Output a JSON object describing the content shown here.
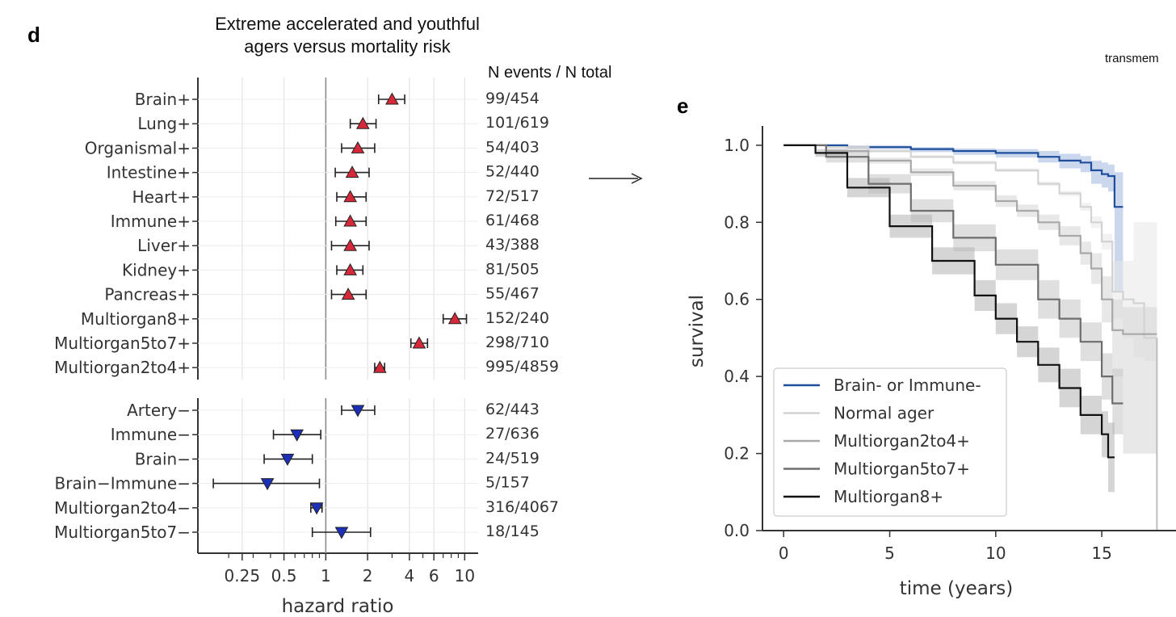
{
  "panel_d": {
    "letter": "d",
    "title_line1": "Extreme accelerated and youthful",
    "title_line2": "agers versus mortality risk",
    "counts_header": "N events / N total"
  },
  "panel_e": {
    "letter": "e",
    "clipped_label": "transmem"
  },
  "chart_data": [
    {
      "type": "scatter",
      "subtype": "forest-plot",
      "xlabel": "hazard ratio",
      "xscale": "log",
      "xlim": [
        0.12,
        12.5
      ],
      "xticks": [
        0.25,
        0.5,
        1,
        2,
        4,
        6,
        10
      ],
      "xtick_labels": [
        "0.25",
        "0.5",
        "1",
        "2",
        "4",
        "6",
        "10"
      ],
      "reference_line": 1,
      "grid": true,
      "groups": [
        {
          "marker": "triangle-up",
          "color": "#d62839",
          "rows": [
            {
              "label": "Brain+",
              "hr": 3.0,
              "lo": 2.4,
              "hi": 3.7,
              "count": "99/454"
            },
            {
              "label": "Lung+",
              "hr": 1.85,
              "lo": 1.5,
              "hi": 2.3,
              "count": "101/619"
            },
            {
              "label": "Organismal+",
              "hr": 1.7,
              "lo": 1.3,
              "hi": 2.25,
              "count": "54/403"
            },
            {
              "label": "Intestine+",
              "hr": 1.55,
              "lo": 1.17,
              "hi": 2.05,
              "count": "52/440"
            },
            {
              "label": "Heart+",
              "hr": 1.5,
              "lo": 1.2,
              "hi": 1.95,
              "count": "72/517"
            },
            {
              "label": "Immune+",
              "hr": 1.5,
              "lo": 1.18,
              "hi": 1.95,
              "count": "61/468"
            },
            {
              "label": "Liver+",
              "hr": 1.5,
              "lo": 1.1,
              "hi": 2.05,
              "count": "43/388"
            },
            {
              "label": "Kidney+",
              "hr": 1.5,
              "lo": 1.2,
              "hi": 1.85,
              "count": "81/505"
            },
            {
              "label": "Pancreas+",
              "hr": 1.45,
              "lo": 1.1,
              "hi": 1.95,
              "count": "55/467"
            },
            {
              "label": "Multiorgan8+",
              "hr": 8.5,
              "lo": 7.0,
              "hi": 10.3,
              "count": "152/240"
            },
            {
              "label": "Multiorgan5to7+",
              "hr": 4.7,
              "lo": 4.1,
              "hi": 5.4,
              "count": "298/710"
            },
            {
              "label": "Multiorgan2to4+",
              "hr": 2.45,
              "lo": 2.25,
              "hi": 2.65,
              "count": "995/4859"
            }
          ]
        },
        {
          "marker": "triangle-down",
          "color": "#1c2fb8",
          "rows": [
            {
              "label": "Artery−",
              "hr": 1.7,
              "lo": 1.3,
              "hi": 2.25,
              "count": "62/443"
            },
            {
              "label": "Immune−",
              "hr": 0.62,
              "lo": 0.42,
              "hi": 0.92,
              "count": "27/636"
            },
            {
              "label": "Brain−",
              "hr": 0.53,
              "lo": 0.36,
              "hi": 0.8,
              "count": "24/519"
            },
            {
              "label": "Brain−Immune−",
              "hr": 0.38,
              "lo": 0.155,
              "hi": 0.9,
              "count": "5/157"
            },
            {
              "label": "Multiorgan2to4−",
              "hr": 0.86,
              "lo": 0.78,
              "hi": 0.94,
              "count": "316/4067"
            },
            {
              "label": "Multiorgan5to7−",
              "hr": 1.3,
              "lo": 0.8,
              "hi": 2.1,
              "count": "18/145"
            }
          ]
        }
      ]
    },
    {
      "type": "line",
      "subtype": "kaplan-meier",
      "xlabel": "time (years)",
      "ylabel": "survival",
      "xlim": [
        -1,
        18.5
      ],
      "ylim": [
        0,
        1.05
      ],
      "xticks": [
        0,
        5,
        10,
        15
      ],
      "yticks": [
        0.0,
        0.2,
        0.4,
        0.6,
        0.8,
        1.0
      ],
      "ytick_labels": [
        "0.0",
        "0.2",
        "0.4",
        "0.6",
        "0.8",
        "1.0"
      ],
      "legend_position": "lower-left",
      "series": [
        {
          "name": "Brain- or Immune-",
          "color": "#1f4e9c",
          "band_color": "#9fb6dc",
          "x": [
            0,
            1.2,
            3,
            6,
            8,
            10,
            12,
            13,
            14,
            14.5,
            15,
            15.3,
            15.6,
            16
          ],
          "y": [
            1,
            1,
            0.995,
            0.99,
            0.985,
            0.98,
            0.97,
            0.96,
            0.955,
            0.935,
            0.925,
            0.92,
            0.84,
            0.84
          ],
          "lower": [
            1,
            1,
            0.99,
            0.982,
            0.975,
            0.968,
            0.955,
            0.94,
            0.93,
            0.9,
            0.89,
            0.88,
            0.62,
            0.62
          ],
          "upper": [
            1,
            1,
            1,
            0.995,
            0.992,
            0.99,
            0.985,
            0.978,
            0.972,
            0.96,
            0.955,
            0.95,
            0.93,
            0.93
          ]
        },
        {
          "name": "Normal ager",
          "color": "#d3d3d3",
          "band_color": "#e7e7e7",
          "x": [
            0,
            1,
            2,
            4,
            6,
            8,
            10,
            12,
            13,
            14,
            14.5,
            15,
            15.5,
            16,
            16.5,
            17,
            17.6
          ],
          "y": [
            1,
            1,
            0.995,
            0.985,
            0.97,
            0.955,
            0.935,
            0.9,
            0.875,
            0.84,
            0.8,
            0.75,
            0.62,
            0.6,
            0.59,
            0.5,
            0.5
          ],
          "lower": [
            1,
            1,
            0.99,
            0.98,
            0.966,
            0.95,
            0.93,
            0.894,
            0.868,
            0.83,
            0.785,
            0.73,
            0.55,
            0.5,
            0.45,
            0.44,
            0.44
          ],
          "upper": [
            1,
            1,
            1,
            0.99,
            0.975,
            0.96,
            0.94,
            0.906,
            0.882,
            0.85,
            0.815,
            0.77,
            0.7,
            0.7,
            0.8,
            0.8,
            0.8
          ]
        },
        {
          "name": "Multiorgan2to4+",
          "color": "#a9a9a9",
          "band_color": "#d6d6d6",
          "x": [
            0,
            1,
            2,
            4,
            6,
            8,
            10,
            11,
            12,
            13,
            14,
            14.5,
            15,
            15.5,
            16,
            17.6
          ],
          "y": [
            1,
            1,
            0.985,
            0.96,
            0.93,
            0.895,
            0.855,
            0.83,
            0.8,
            0.765,
            0.72,
            0.68,
            0.6,
            0.52,
            0.51,
            0.51
          ],
          "lower": [
            1,
            1,
            0.98,
            0.952,
            0.92,
            0.883,
            0.84,
            0.814,
            0.78,
            0.74,
            0.69,
            0.64,
            0.54,
            0.4,
            0.2,
            0.2
          ],
          "upper": [
            1,
            1,
            0.99,
            0.968,
            0.94,
            0.907,
            0.87,
            0.846,
            0.82,
            0.79,
            0.75,
            0.72,
            0.66,
            0.6,
            0.58,
            0.58
          ]
        },
        {
          "name": "Multiorgan5to7+",
          "color": "#6e6e6e",
          "band_color": "#c4c4c4",
          "x": [
            0,
            1,
            2,
            4,
            6,
            8,
            10,
            12,
            13,
            14,
            15,
            15.5,
            16
          ],
          "y": [
            1,
            1,
            0.97,
            0.9,
            0.83,
            0.76,
            0.69,
            0.6,
            0.55,
            0.49,
            0.4,
            0.33,
            0.33
          ],
          "lower": [
            1,
            1,
            0.955,
            0.875,
            0.8,
            0.725,
            0.65,
            0.55,
            0.5,
            0.44,
            0.34,
            0.25,
            0.25
          ],
          "upper": [
            1,
            1,
            0.985,
            0.925,
            0.86,
            0.795,
            0.73,
            0.65,
            0.6,
            0.54,
            0.46,
            0.42,
            0.42
          ]
        },
        {
          "name": "Multiorgan8+",
          "color": "#111111",
          "band_color": "#b3b3b3",
          "x": [
            0,
            1,
            1.5,
            3,
            5,
            7,
            9,
            10,
            11,
            12,
            13,
            14,
            15,
            15.3,
            15.6
          ],
          "y": [
            1,
            1,
            0.98,
            0.89,
            0.79,
            0.7,
            0.61,
            0.55,
            0.49,
            0.43,
            0.37,
            0.3,
            0.25,
            0.19,
            0.19
          ],
          "lower": [
            1,
            1,
            0.97,
            0.865,
            0.76,
            0.665,
            0.57,
            0.51,
            0.45,
            0.385,
            0.32,
            0.25,
            0.19,
            0.1,
            0.1
          ],
          "upper": [
            1,
            1,
            0.99,
            0.915,
            0.82,
            0.735,
            0.65,
            0.59,
            0.53,
            0.475,
            0.42,
            0.35,
            0.31,
            0.28,
            0.28
          ]
        }
      ]
    }
  ]
}
